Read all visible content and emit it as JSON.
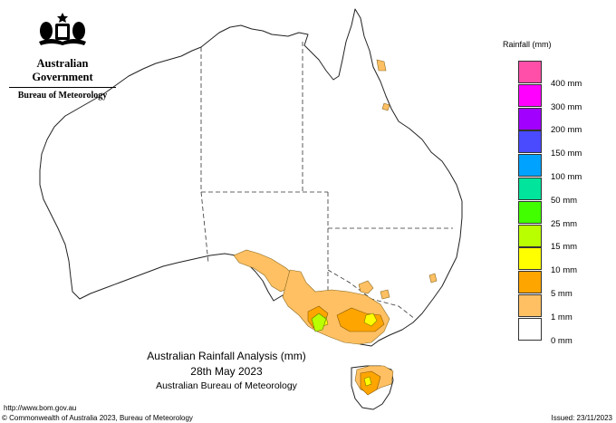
{
  "header": {
    "government": "Australian Government",
    "agency": "Bureau of Meteorology"
  },
  "legend": {
    "title": "Rainfall (mm)",
    "entries": [
      {
        "label": "",
        "color": "#ff4fa8"
      },
      {
        "label": "400 mm",
        "color": "#ff00ff"
      },
      {
        "label": "300 mm",
        "color": "#a100ff"
      },
      {
        "label": "200 mm",
        "color": "#4a4aff"
      },
      {
        "label": "150 mm",
        "color": "#00a2ff"
      },
      {
        "label": "100 mm",
        "color": "#00e49c"
      },
      {
        "label": "50 mm",
        "color": "#42ff00"
      },
      {
        "label": "25 mm",
        "color": "#baff00"
      },
      {
        "label": "15 mm",
        "color": "#ffff00"
      },
      {
        "label": "10 mm",
        "color": "#ffa500"
      },
      {
        "label": "5 mm",
        "color": "#ffc063"
      },
      {
        "label": "1 mm",
        "color": "#ffffff"
      },
      {
        "label": "0 mm",
        "color": ""
      }
    ]
  },
  "title": {
    "line1": "Australian Rainfall Analysis (mm)",
    "line2": "28th May 2023",
    "line3": "Australian Bureau of Meteorology"
  },
  "footer": {
    "url": "http://www.bom.gov.au",
    "copyright": "© Commonwealth of Australia 2023, Bureau of Meteorology",
    "issued": "Issued: 23/11/2023"
  },
  "map": {
    "land_color": "#ffffff",
    "outline_color": "#222222",
    "rain_1mm_color": "#ffc063",
    "rain_5mm_color": "#ffa500",
    "rain_10mm_color": "#ffff00",
    "rain_15mm_color": "#baff00"
  }
}
